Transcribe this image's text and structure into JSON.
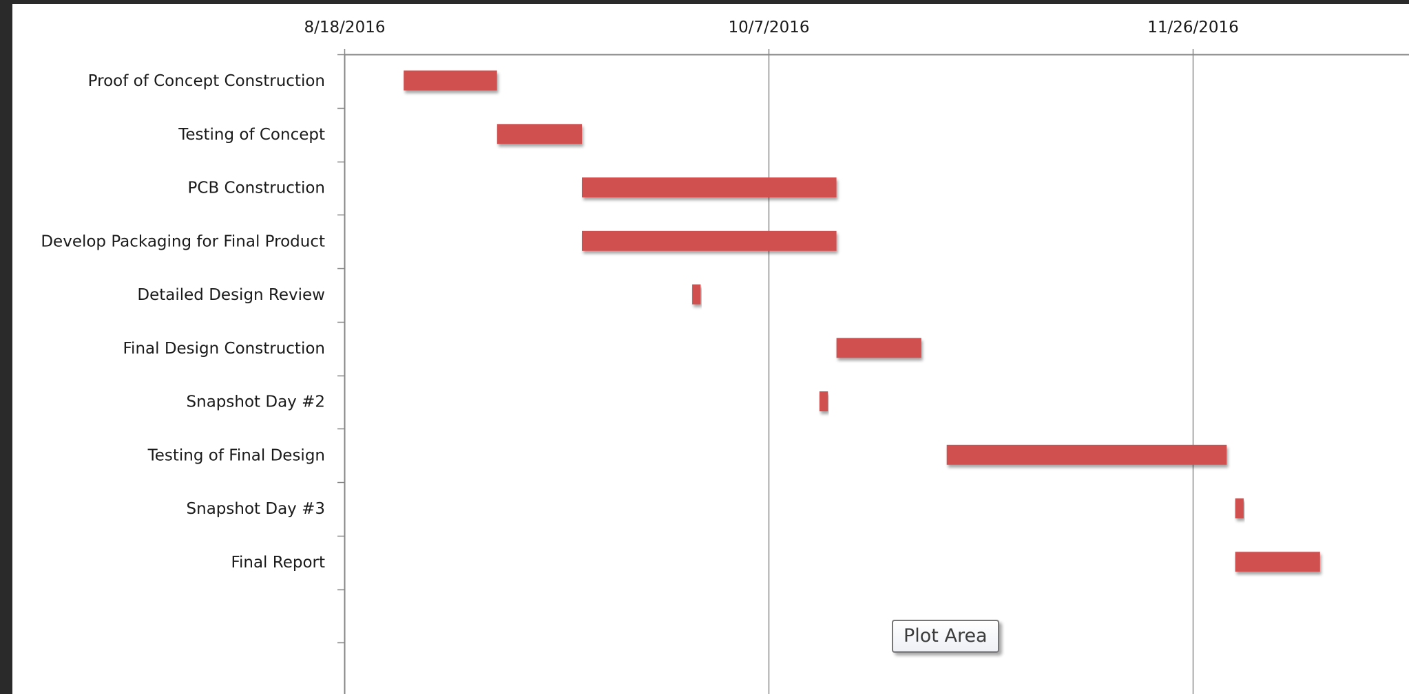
{
  "chart_data": {
    "type": "bar",
    "orientation": "horizontal",
    "style": "gantt",
    "categories": [
      "Proof of Concept Construction",
      "Testing of Concept",
      "PCB Construction",
      "Develop Packaging for Final Product",
      "Detailed Design Review",
      "Final Design Construction",
      "Snapshot Day #2",
      "Testing of Final Design",
      "Snapshot Day #3",
      "Final Report"
    ],
    "series": [
      {
        "values": [
          {
            "start": "2016-08-25",
            "end": "2016-09-05"
          },
          {
            "start": "2016-09-05",
            "end": "2016-09-15"
          },
          {
            "start": "2016-09-15",
            "end": "2016-10-15"
          },
          {
            "start": "2016-09-15",
            "end": "2016-10-15"
          },
          {
            "start": "2016-09-28",
            "end": "2016-09-29"
          },
          {
            "start": "2016-10-15",
            "end": "2016-10-25"
          },
          {
            "start": "2016-10-13",
            "end": "2016-10-14"
          },
          {
            "start": "2016-10-28",
            "end": "2016-11-30"
          },
          {
            "start": "2016-12-01",
            "end": "2016-12-02"
          },
          {
            "start": "2016-12-01",
            "end": "2016-12-11"
          }
        ],
        "color": "#d0504f"
      }
    ],
    "x_axis": {
      "position": "top",
      "scale": "date",
      "ticks": [
        "8/18/2016",
        "10/7/2016",
        "11/26/2016"
      ],
      "range": [
        "2016-08-18",
        "2017-01-10"
      ]
    },
    "gridlines": "vertical",
    "legend": "none"
  },
  "colors": {
    "bar": "#d0504f",
    "axis": "#868686",
    "gridline": "#8c8c8c"
  },
  "tooltip": {
    "text": "Plot Area"
  }
}
